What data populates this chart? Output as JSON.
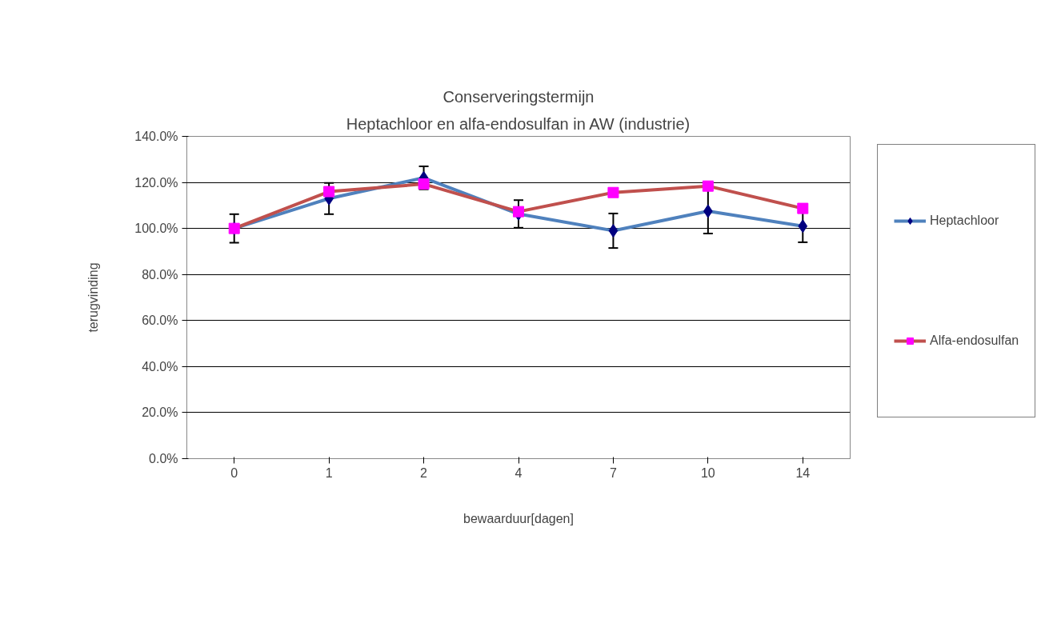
{
  "chart_data": {
    "type": "line",
    "title": "Conserveringstermijn",
    "subtitle": "Heptachloor en alfa-endosulfan in AW (industrie)",
    "xlabel": "bewaarduur[dagen]",
    "ylabel": "terugvinding",
    "categories": [
      "0",
      "1",
      "2",
      "4",
      "7",
      "10",
      "14"
    ],
    "series": [
      {
        "name": "Heptachloor",
        "color": "#4f81bd",
        "marker": "diamond",
        "values": [
          100,
          113,
          122,
          106.3,
          99,
          107.5,
          101
        ],
        "errors": [
          6.2,
          6.8,
          5,
          6,
          7.5,
          9.7,
          7
        ]
      },
      {
        "name": "Alfa-endosulfan",
        "color": "#c0504d",
        "marker": "square",
        "values": [
          100,
          116,
          119.3,
          107.3,
          115.6,
          118.4,
          108.7
        ]
      }
    ],
    "ylim": [
      0,
      140
    ],
    "yticks": [
      {
        "value": 0,
        "label": "0.0%"
      },
      {
        "value": 20,
        "label": "20.0%"
      },
      {
        "value": 40,
        "label": "40.0%"
      },
      {
        "value": 60,
        "label": "60.0%"
      },
      {
        "value": 80,
        "label": "80.0%"
      },
      {
        "value": 100,
        "label": "100.0%"
      },
      {
        "value": 120,
        "label": "120.0%"
      },
      {
        "value": 140,
        "label": "140.0%"
      }
    ],
    "grid": "y",
    "legend": "right",
    "line_style": "solid"
  }
}
